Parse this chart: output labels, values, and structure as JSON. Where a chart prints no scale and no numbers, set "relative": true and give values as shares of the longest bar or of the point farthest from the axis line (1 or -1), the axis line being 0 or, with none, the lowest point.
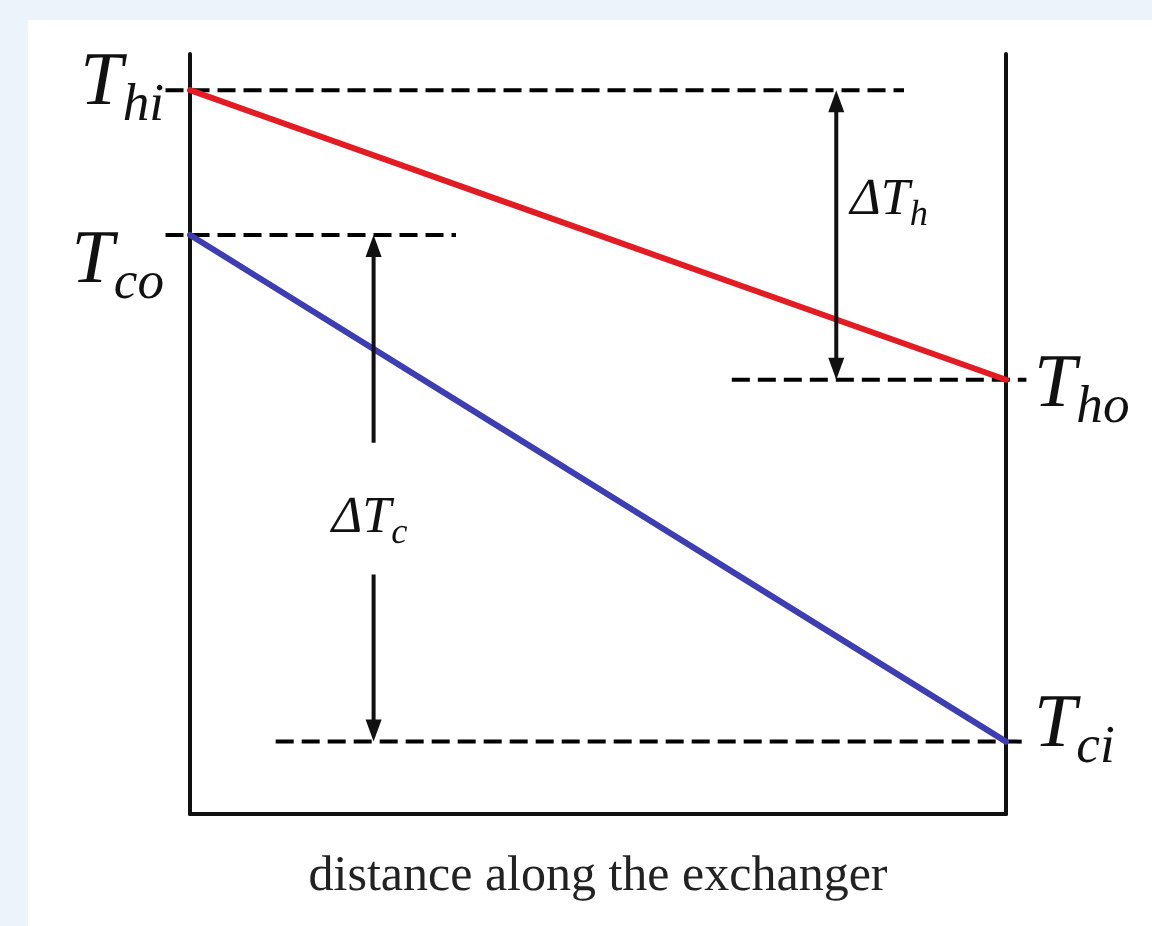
{
  "chart_data": {
    "type": "line",
    "xlabel": "distance along the exchanger",
    "categories": [
      null,
      null
    ],
    "relative": true,
    "series": [
      {
        "color": "#e31b23",
        "values": [
          1,
          0.6
        ]
      },
      {
        "color": "#3d3db4",
        "values": [
          0.8,
          0.1
        ]
      }
    ],
    "ref_lines": [
      {
        "axis": "y",
        "value": 1,
        "label": "T$_{hi}$",
        "color": "#000000",
        "line_style": "dashed"
      },
      {
        "axis": "y",
        "value": 0.8,
        "label": "T$_{co}$",
        "color": "#000000",
        "line_style": "dashed"
      },
      {
        "axis": "y",
        "value": 0.6,
        "label": "T$_{ho}$",
        "color": "#000000",
        "line_style": "dashed"
      },
      {
        "axis": "y",
        "value": 0.1,
        "label": "T$_{ci}$",
        "color": "#000000",
        "line_style": "dashed"
      }
    ],
    "annotations": [
      "ΔT$_{h}$",
      "ΔT$_{c}$"
    ]
  }
}
